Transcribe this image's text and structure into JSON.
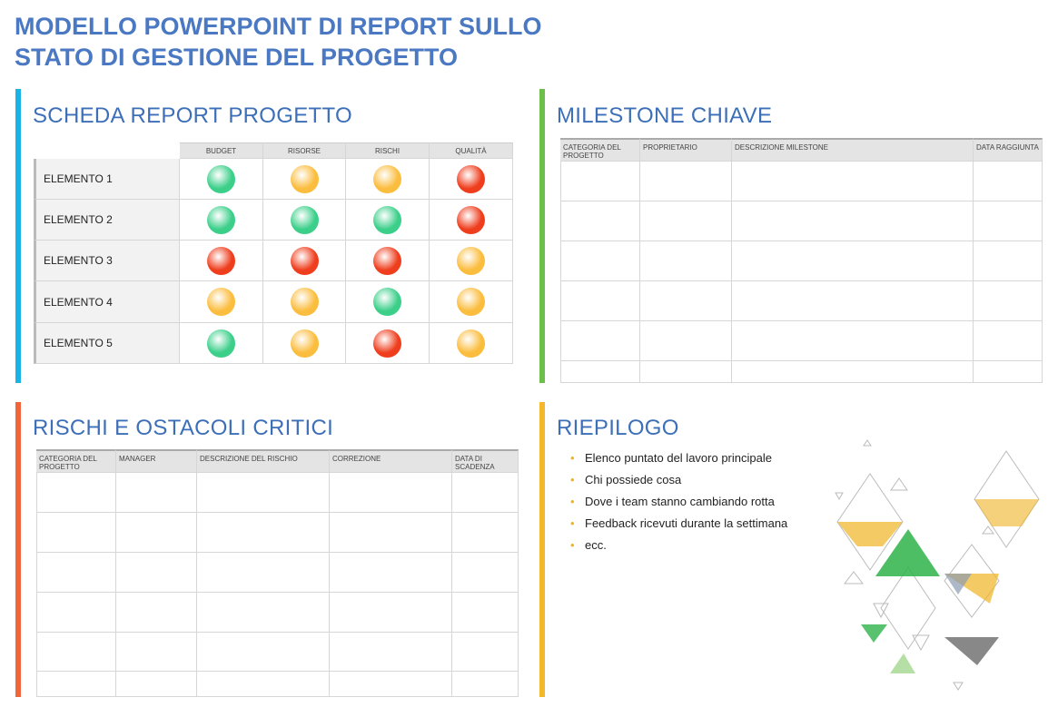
{
  "header": {
    "title": [
      "MODELLO POWERPOINT DI REPORT SULLO",
      "STATO DI GESTIONE DEL PROGETTO"
    ]
  },
  "scorecard": {
    "title": "SCHEDA REPORT PROGETTO",
    "columns": [
      "BUDGET",
      "RISORSE",
      "RISCHI",
      "QUALITÀ"
    ],
    "rows": [
      {
        "label": "ELEMENTO 1",
        "status": [
          "#3ccf8a",
          "#fbbd3e",
          "#fbbd3e",
          "#ef3e1e"
        ]
      },
      {
        "label": "ELEMENTO 2",
        "status": [
          "#3ccf8a",
          "#3ccf8a",
          "#3ccf8a",
          "#ef3e1e"
        ]
      },
      {
        "label": "ELEMENTO 3",
        "status": [
          "#ef3e1e",
          "#ef3e1e",
          "#ef3e1e",
          "#fbbd3e"
        ]
      },
      {
        "label": "ELEMENTO 4",
        "status": [
          "#fbbd3e",
          "#fbbd3e",
          "#3ccf8a",
          "#fbbd3e"
        ]
      },
      {
        "label": "ELEMENTO 5",
        "status": [
          "#3ccf8a",
          "#fbbd3e",
          "#ef3e1e",
          "#fbbd3e"
        ]
      }
    ]
  },
  "milestones": {
    "title": "MILESTONE CHIAVE",
    "columns": [
      "CATEGORIA DEL PROGETTO",
      "PROPRIETARIO",
      "DESCRIZIONE MILESTONE",
      "DATA RAGGIUNTA"
    ]
  },
  "risks": {
    "title": "RISCHI E OSTACOLI CRITICI",
    "columns": [
      "CATEGORIA DEL PROGETTO",
      "MANAGER",
      "DESCRIZIONE DEL RISCHIO",
      "CORREZIONE",
      "DATA DI SCADENZA"
    ]
  },
  "summary": {
    "title": "RIEPILOGO",
    "bullets": [
      "Elenco puntato del lavoro principale",
      "Chi possiede cosa",
      "Dove i team stanno cambiando rotta",
      "Feedback ricevuti durante la settimana",
      "ecc."
    ]
  }
}
